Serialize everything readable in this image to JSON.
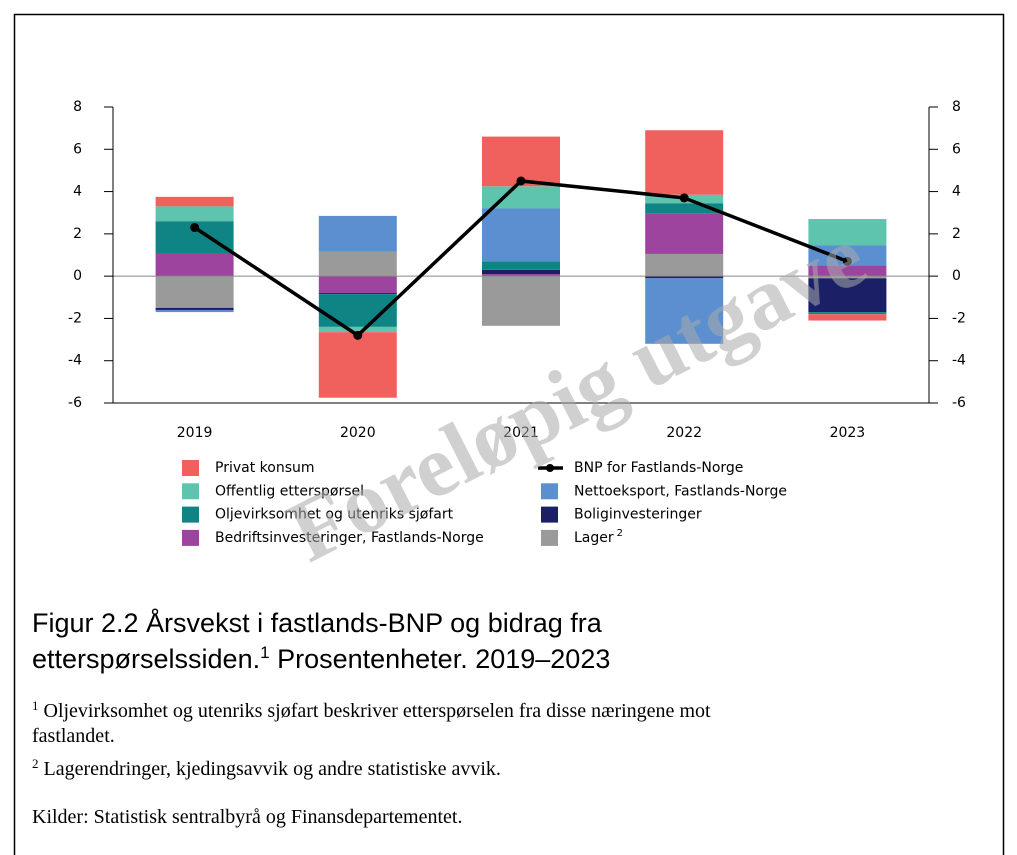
{
  "chart_data": {
    "type": "bar",
    "categories": [
      "2019",
      "2020",
      "2021",
      "2022",
      "2023"
    ],
    "ylim": [
      -6,
      8
    ],
    "yticks": [
      -6,
      -4,
      -2,
      0,
      2,
      4,
      6,
      8
    ],
    "y2lim": [
      -6,
      8
    ],
    "y2ticks": [
      -6,
      -4,
      -2,
      0,
      2,
      4,
      6,
      8
    ],
    "stacked": true,
    "series": [
      {
        "name": "Privat konsum",
        "type": "bar",
        "color": "#f0605d",
        "values": [
          0.45,
          -3.1,
          2.35,
          3.05,
          -0.3
        ]
      },
      {
        "name": "BNP for Fastlands-Norge",
        "type": "line",
        "color": "#000000",
        "values": [
          2.3,
          -2.8,
          4.5,
          3.7,
          0.7
        ]
      },
      {
        "name": "Offentlig etterspørsel",
        "type": "bar",
        "color": "#5fc4ae",
        "values": [
          0.7,
          -0.25,
          1.05,
          0.4,
          1.25
        ]
      },
      {
        "name": "Nettoeksport, Fastlands-Norge",
        "type": "bar",
        "color": "#5b8fd0",
        "values": [
          -0.1,
          1.7,
          2.5,
          -3.1,
          0.95
        ]
      },
      {
        "name": "Oljevirksomhet og utenriks sjøfart",
        "type": "bar",
        "color": "#0f8484",
        "values": [
          1.55,
          -1.55,
          0.4,
          0.5,
          -0.1
        ]
      },
      {
        "name": "Boliginvesteringer",
        "type": "bar",
        "color": "#1a1f66",
        "values": [
          -0.1,
          -0.05,
          0.2,
          -0.1,
          -1.6
        ]
      },
      {
        "name": "Bedriftsinvesteringer, Fastlands-Norge",
        "type": "bar",
        "color": "#9c449e",
        "values": [
          1.05,
          -0.8,
          0.1,
          1.9,
          0.5
        ]
      },
      {
        "name": "Lager",
        "name_sup": "2",
        "type": "bar",
        "color": "#9a9a9b",
        "values": [
          -1.5,
          1.15,
          -2.35,
          1.05,
          -0.1
        ]
      }
    ],
    "watermark": "Foreløpig utgave",
    "caption": {
      "text1": "Figur 2.2 Årsvekst i fastlands-BNP og bidrag fra",
      "text2": "etterspørselssiden.",
      "sup": "1",
      "text3": " Prosentenheter. 2019–2023"
    },
    "footnotes": [
      {
        "mark": "1",
        "text": " Oljevirksomhet og utenriks sjøfart beskriver etterspørselen fra disse næringene mot",
        "text2": "fastlandet."
      },
      {
        "mark": "2",
        "text": " Lagerendringer, kjedingsavvik og andre statistiske avvik."
      }
    ],
    "source": "Kilder: Statistisk sentralbyrå og Finansdepartementet."
  }
}
